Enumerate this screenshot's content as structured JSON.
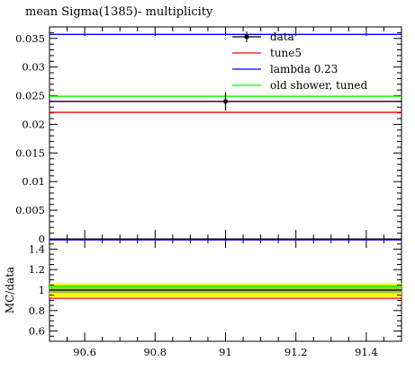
{
  "chart_data": [
    {
      "type": "line",
      "title": "mean Sigma(1385)- multiplicity",
      "xlabel": "",
      "ylabel": "",
      "xlim": [
        90.5,
        91.5
      ],
      "ylim": [
        0,
        0.037
      ],
      "yticks": [
        0,
        0.005,
        0.01,
        0.015,
        0.02,
        0.025,
        0.03,
        0.035
      ],
      "ytick_labels": [
        "0",
        "0.005",
        "0.01",
        "0.015",
        "0.02",
        "0.025",
        "0.03",
        "0.035"
      ],
      "legend_position": "top-right",
      "data_point": {
        "name": "data",
        "x": 91.0,
        "y": 0.024,
        "yerr": 0.0016,
        "color": "#000000"
      },
      "series": [
        {
          "name": "tune5",
          "color": "#ff0000",
          "x": [
            90.5,
            91.5
          ],
          "values": [
            0.0221,
            0.0221
          ]
        },
        {
          "name": "lambda 0.23",
          "color": "#0000ff",
          "x": [
            90.5,
            91.5
          ],
          "values": [
            0.0357,
            0.0357
          ]
        },
        {
          "name": "old shower, tuned",
          "color": "#00ff00",
          "x": [
            90.5,
            91.5
          ],
          "values": [
            0.0249,
            0.0249
          ]
        }
      ],
      "data_line": {
        "name": "data",
        "color": "#000000",
        "x": [
          90.5,
          91.5
        ],
        "values": [
          0.024,
          0.024
        ]
      }
    },
    {
      "type": "line",
      "title": "",
      "xlabel": "",
      "ylabel": "MC/data",
      "xlim": [
        90.5,
        91.5
      ],
      "ylim": [
        0.5,
        1.5
      ],
      "yticks": [
        0.6,
        0.8,
        1.0,
        1.2,
        1.4
      ],
      "ytick_labels": [
        "0.6",
        "0.8",
        "1",
        "1.2",
        "1.4"
      ],
      "xticks": [
        90.6,
        90.8,
        91.0,
        91.2,
        91.4
      ],
      "xtick_labels": [
        "90.6",
        "90.8",
        "91",
        "91.2",
        "91.4"
      ],
      "band": {
        "outer": [
          0.933,
          1.067
        ],
        "inner": [
          0.97,
          1.04
        ],
        "outer_color": "#ffff00",
        "inner_color": "#9acd32"
      },
      "series": [
        {
          "name": "tune5",
          "color": "#ff0000",
          "x": [
            90.5,
            91.5
          ],
          "values": [
            0.92,
            0.92
          ]
        },
        {
          "name": "lambda 0.23",
          "color": "#0000ff",
          "x": [
            90.5,
            91.5
          ],
          "values": [
            1.49,
            1.49
          ]
        },
        {
          "name": "old shower, tuned",
          "color": "#00ff00",
          "x": [
            90.5,
            91.5
          ],
          "values": [
            1.04,
            1.04
          ]
        }
      ]
    }
  ]
}
